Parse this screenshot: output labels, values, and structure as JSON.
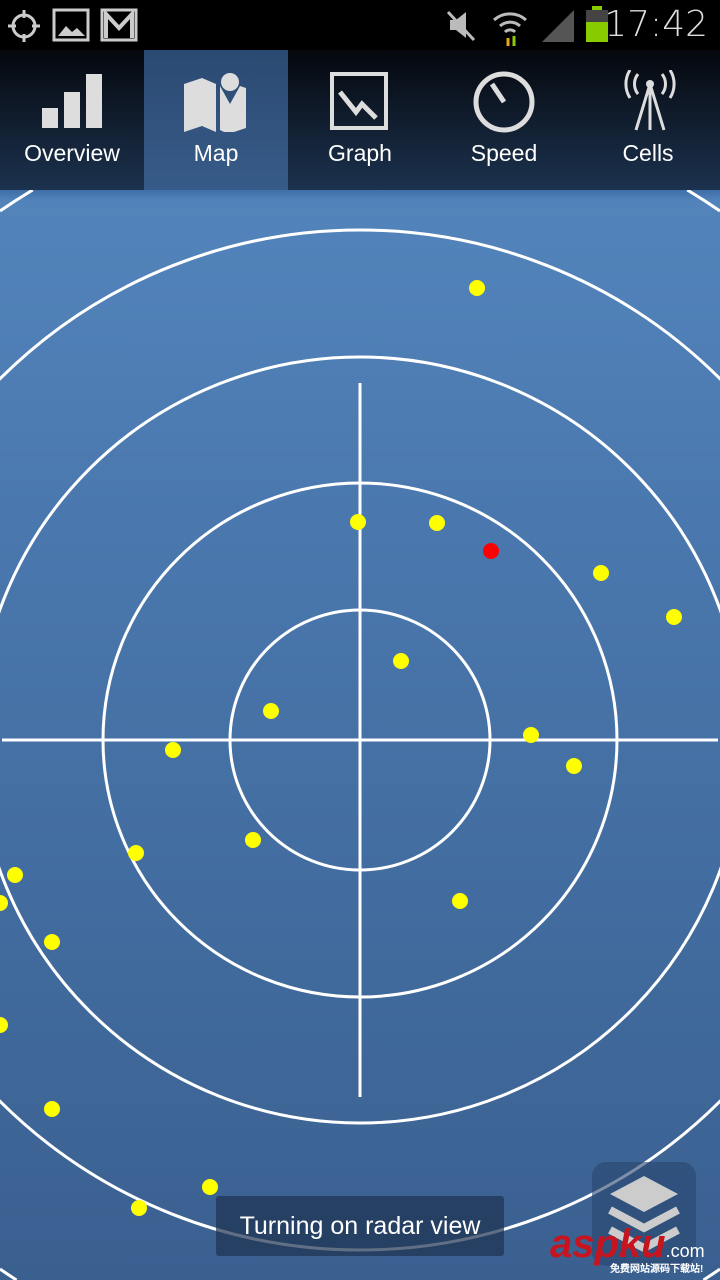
{
  "status_bar": {
    "time": "17:42",
    "icons": [
      "gps-icon",
      "gallery-icon",
      "gmail-icon",
      "mute-icon",
      "wifi-icon",
      "signal-icon",
      "battery-icon"
    ]
  },
  "tabs": [
    {
      "label": "Overview",
      "icon": "signal-bars-icon",
      "active": false
    },
    {
      "label": "Map",
      "icon": "map-icon",
      "active": true
    },
    {
      "label": "Graph",
      "icon": "graph-icon",
      "active": false
    },
    {
      "label": "Speed",
      "icon": "speedometer-icon",
      "active": false
    },
    {
      "label": "Cells",
      "icon": "cell-tower-icon",
      "active": false
    }
  ],
  "radar": {
    "ring_color": "#ffffff",
    "dot_color": "#ffff00",
    "highlight_color": "#ff0000"
  },
  "toast": "Turning on radar view",
  "layers_button": {
    "icon": "layers-icon"
  },
  "watermark": {
    "brand": "aspku",
    ".com": ".com",
    "tagline": "免费网站源码下载站!"
  }
}
